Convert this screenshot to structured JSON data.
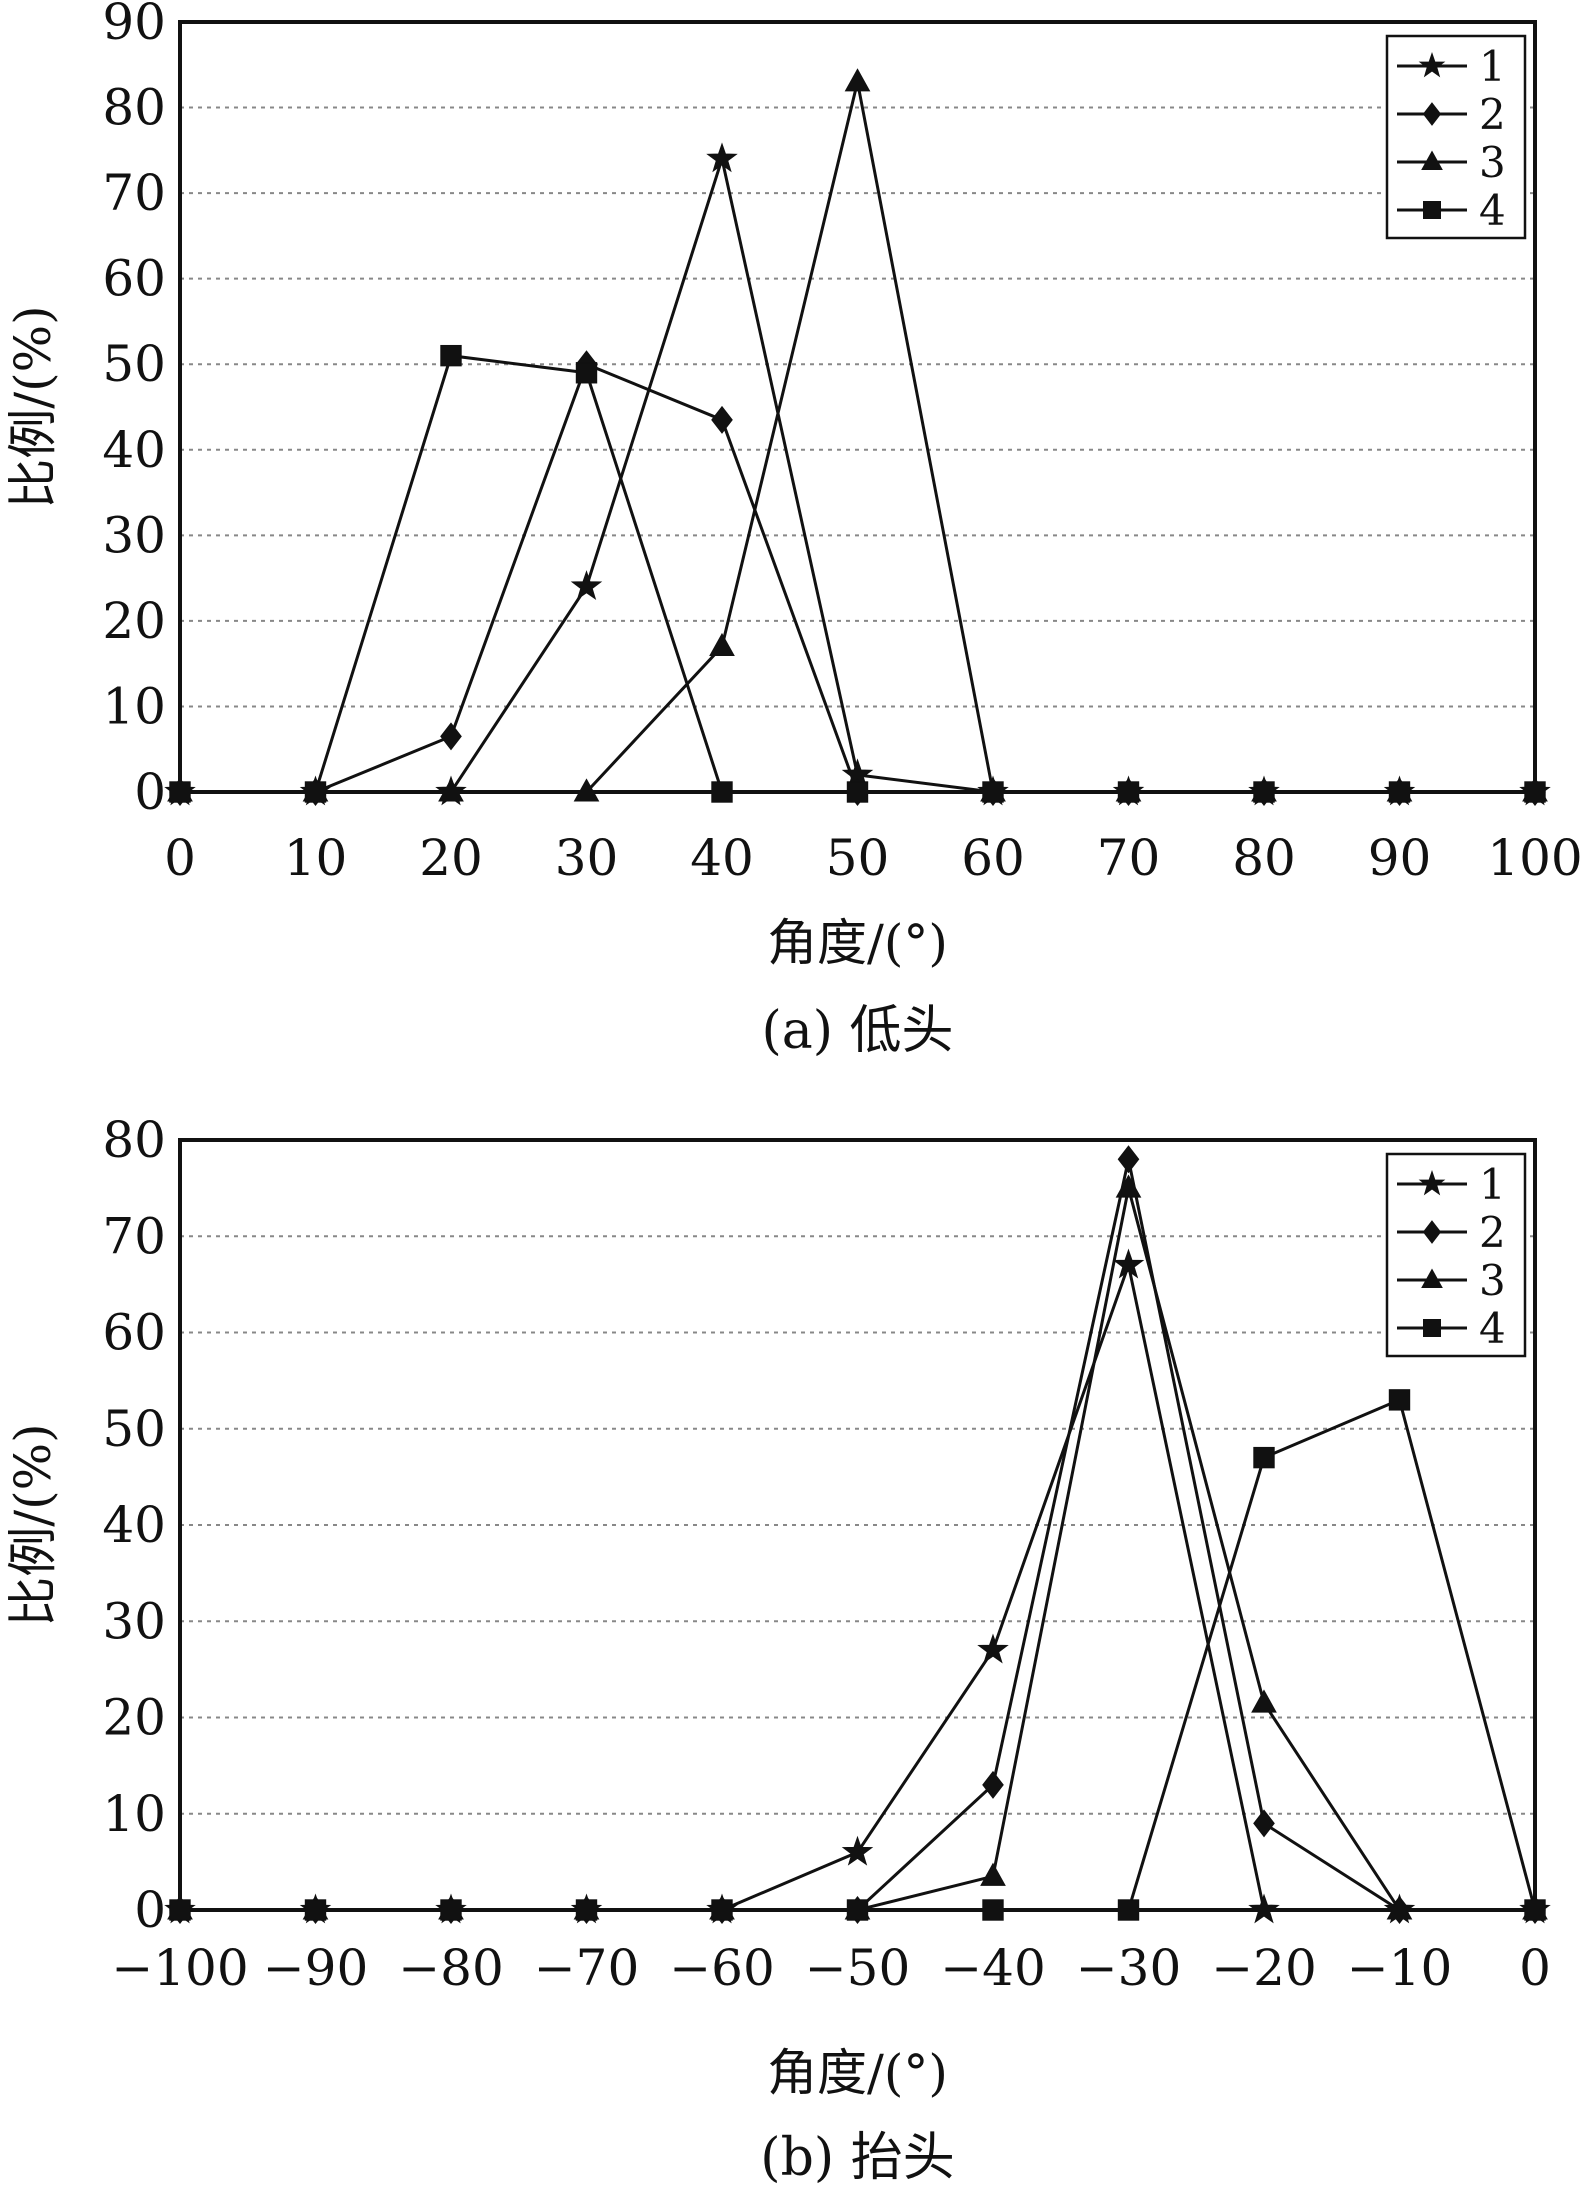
{
  "chart_data": [
    {
      "type": "line",
      "caption": "(a) 低头",
      "xlabel": "角度/(°)",
      "ylabel": "比例/(%)",
      "x": [
        0,
        10,
        20,
        30,
        40,
        50,
        60,
        70,
        80,
        90,
        100
      ],
      "x_tick_labels": [
        "0",
        "10",
        "20",
        "30",
        "40",
        "50",
        "60",
        "70",
        "80",
        "90",
        "100"
      ],
      "xlim": [
        0,
        100
      ],
      "ylim": [
        0,
        90
      ],
      "y_ticks": [
        0,
        10,
        20,
        30,
        40,
        50,
        60,
        70,
        80,
        90
      ],
      "y_tick_labels": [
        "0",
        "10",
        "20",
        "30",
        "40",
        "50",
        "60",
        "70",
        "80",
        "90"
      ],
      "grid": "horizontal",
      "legend_position": "top-right",
      "series": [
        {
          "name": "1",
          "marker": "star",
          "values": [
            0,
            0,
            0,
            24,
            74,
            2,
            0,
            0,
            0,
            0,
            0
          ]
        },
        {
          "name": "2",
          "marker": "diamond",
          "values": [
            0,
            0,
            6.5,
            50,
            43.5,
            0,
            0,
            0,
            0,
            0,
            0
          ]
        },
        {
          "name": "3",
          "marker": "triangle",
          "values": [
            0,
            0,
            0,
            0,
            17,
            83,
            0,
            0,
            0,
            0,
            0
          ]
        },
        {
          "name": "4",
          "marker": "square",
          "values": [
            0,
            0,
            51,
            49,
            0,
            0,
            0,
            0,
            0,
            0,
            0
          ]
        }
      ]
    },
    {
      "type": "line",
      "caption": "(b) 抬头",
      "xlabel": "角度/(°)",
      "ylabel": "比例/(%)",
      "x": [
        -100,
        -90,
        -80,
        -70,
        -60,
        -50,
        -40,
        -30,
        -20,
        -10,
        0
      ],
      "x_tick_labels": [
        "−100",
        "−90",
        "−80",
        "−70",
        "−60",
        "−50",
        "−40",
        "−30",
        "−20",
        "−10",
        "0"
      ],
      "xlim": [
        -100,
        0
      ],
      "ylim": [
        0,
        80
      ],
      "y_ticks": [
        0,
        10,
        20,
        30,
        40,
        50,
        60,
        70,
        80
      ],
      "y_tick_labels": [
        "0",
        "10",
        "20",
        "30",
        "40",
        "50",
        "60",
        "70",
        "80"
      ],
      "grid": "horizontal",
      "legend_position": "top-right",
      "series": [
        {
          "name": "1",
          "marker": "star",
          "values": [
            0,
            0,
            0,
            0,
            0,
            6,
            27,
            67,
            0,
            0,
            0
          ]
        },
        {
          "name": "2",
          "marker": "diamond",
          "values": [
            0,
            0,
            0,
            0,
            0,
            0,
            13,
            78,
            9,
            0,
            0
          ]
        },
        {
          "name": "3",
          "marker": "triangle",
          "values": [
            0,
            0,
            0,
            0,
            0,
            0,
            3.5,
            75,
            21.5,
            0,
            0
          ]
        },
        {
          "name": "4",
          "marker": "square",
          "values": [
            0,
            0,
            0,
            0,
            0,
            0,
            0,
            0,
            47,
            53,
            0
          ]
        }
      ]
    }
  ]
}
